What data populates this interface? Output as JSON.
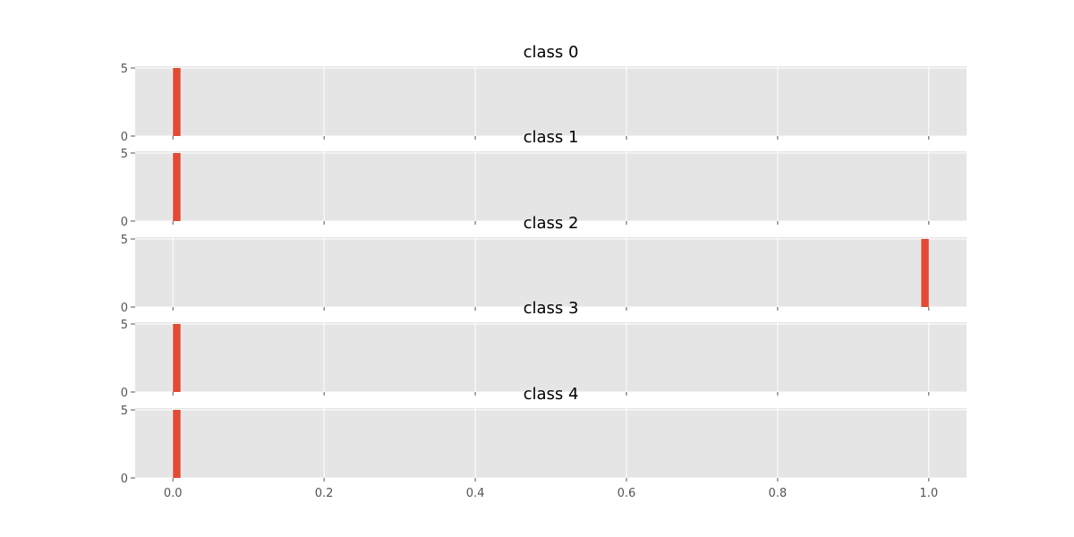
{
  "chart_data": {
    "type": "bar",
    "subplots": [
      {
        "title": "class 0",
        "x": [
          0.0
        ],
        "values": [
          5
        ],
        "xlim": [
          -0.05,
          1.05
        ],
        "ylim": [
          0,
          5
        ],
        "yticks": [
          "0",
          "5"
        ]
      },
      {
        "title": "class 1",
        "x": [
          0.0
        ],
        "values": [
          5
        ],
        "xlim": [
          -0.05,
          1.05
        ],
        "ylim": [
          0,
          5
        ],
        "yticks": [
          "0",
          "5"
        ]
      },
      {
        "title": "class 2",
        "x": [
          0.99
        ],
        "values": [
          5
        ],
        "xlim": [
          -0.05,
          1.05
        ],
        "ylim": [
          0,
          5
        ],
        "yticks": [
          "0",
          "5"
        ]
      },
      {
        "title": "class 3",
        "x": [
          0.0
        ],
        "values": [
          5
        ],
        "xlim": [
          -0.05,
          1.05
        ],
        "ylim": [
          0,
          5
        ],
        "yticks": [
          "0",
          "5"
        ]
      },
      {
        "title": "class 4",
        "x": [
          0.0
        ],
        "values": [
          5
        ],
        "xlim": [
          -0.05,
          1.05
        ],
        "ylim": [
          0,
          5
        ],
        "yticks": [
          "0",
          "5"
        ]
      }
    ],
    "xticks": [
      "0.0",
      "0.2",
      "0.4",
      "0.6",
      "0.8",
      "1.0"
    ],
    "xtick_values": [
      0.0,
      0.2,
      0.4,
      0.6,
      0.8,
      1.0
    ],
    "bar_width": 0.01,
    "grid": true,
    "bar_color": "#e24a33",
    "panel_color": "#e5e5e5"
  }
}
